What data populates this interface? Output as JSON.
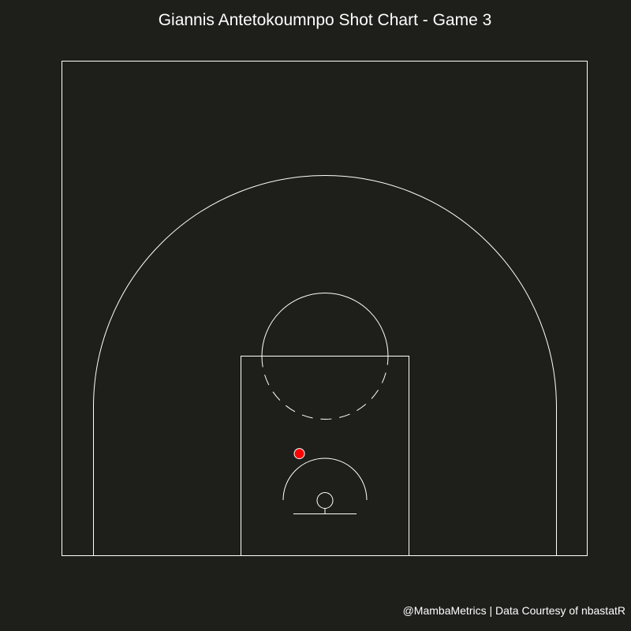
{
  "chart_data": {
    "type": "scatter",
    "title": "Giannis Antetokoumnpo Shot Chart - Game 3",
    "caption": "@MambaMetrics | Data Courtesy of nbastatR",
    "xlim": [
      -250,
      250
    ],
    "ylim": [
      -52,
      418
    ],
    "shots": [
      {
        "x": -24,
        "y": 45,
        "made": false
      }
    ],
    "colors": {
      "background": "#1e1e1b",
      "lines": "#ffffff",
      "missed": "#ff0000",
      "made": "#00cc00"
    }
  }
}
